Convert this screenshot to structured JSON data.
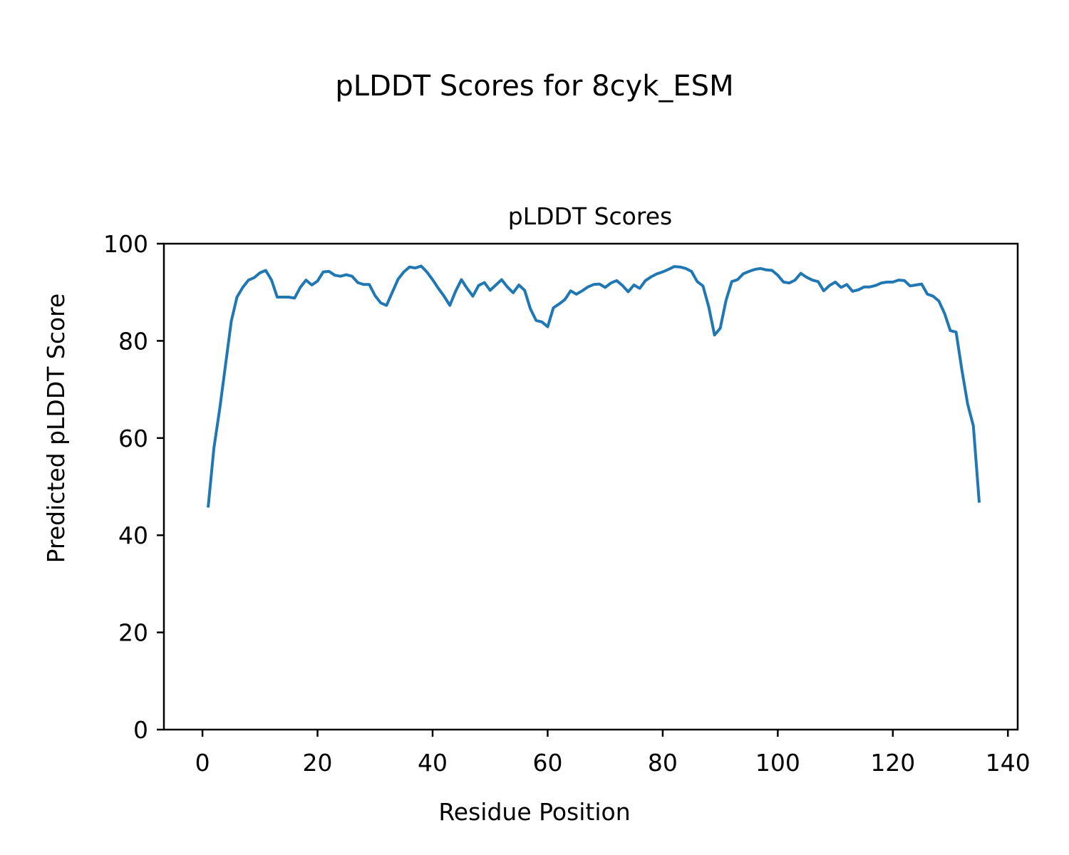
{
  "figure": {
    "suptitle": "pLDDT Scores for 8cyk_ESM"
  },
  "chart_data": {
    "type": "line",
    "title": "pLDDT Scores",
    "xlabel": "Residue Position",
    "ylabel": "Predicted pLDDT Score",
    "xlim": [
      -6.7,
      141.7
    ],
    "ylim": [
      0,
      100
    ],
    "xticks": [
      0,
      20,
      40,
      60,
      80,
      100,
      120,
      140
    ],
    "yticks": [
      0,
      20,
      40,
      60,
      80,
      100
    ],
    "grid": false,
    "legend": "none",
    "series": [
      {
        "color": "#1f77b4",
        "x": [
          1,
          2,
          3,
          4,
          5,
          6,
          7,
          8,
          9,
          10,
          11,
          12,
          13,
          14,
          15,
          16,
          17,
          18,
          19,
          20,
          21,
          22,
          23,
          24,
          25,
          26,
          27,
          28,
          29,
          30,
          31,
          32,
          33,
          34,
          35,
          36,
          37,
          38,
          39,
          40,
          41,
          42,
          43,
          44,
          45,
          46,
          47,
          48,
          49,
          50,
          51,
          52,
          53,
          54,
          55,
          56,
          57,
          58,
          59,
          60,
          61,
          62,
          63,
          64,
          65,
          66,
          67,
          68,
          69,
          70,
          71,
          72,
          73,
          74,
          75,
          76,
          77,
          78,
          79,
          80,
          81,
          82,
          83,
          84,
          85,
          86,
          87,
          88,
          89,
          90,
          91,
          92,
          93,
          94,
          95,
          96,
          97,
          98,
          99,
          100,
          101,
          102,
          103,
          104,
          105,
          106,
          107,
          108,
          109,
          110,
          111,
          112,
          113,
          114,
          115,
          116,
          117,
          118,
          119,
          120,
          121,
          122,
          123,
          124,
          125,
          126,
          127,
          128,
          129,
          130,
          131,
          132,
          133,
          134,
          135
        ],
        "y": [
          46,
          58,
          66,
          75,
          84,
          89,
          91,
          92.5,
          93,
          94,
          94.5,
          92.5,
          89,
          89,
          89,
          88.8,
          91,
          92.5,
          91.5,
          92.3,
          94.2,
          94.3,
          93.5,
          93.3,
          93.6,
          93.3,
          92,
          91.6,
          91.6,
          89.3,
          87.8,
          87.3,
          90,
          92.7,
          94.2,
          95.2,
          95,
          95.4,
          94.2,
          92.6,
          90.8,
          89.2,
          87.3,
          90.2,
          92.6,
          90.8,
          89.2,
          91.4,
          92,
          90.4,
          91.5,
          92.6,
          91.1,
          89.9,
          91.5,
          90.4,
          86.6,
          84.2,
          83.9,
          82.9,
          86.8,
          87.6,
          88.5,
          90.3,
          89.6,
          90.3,
          91.1,
          91.6,
          91.7,
          91,
          91.9,
          92.4,
          91.4,
          90.1,
          91.5,
          90.8,
          92.4,
          93.2,
          93.8,
          94.2,
          94.7,
          95.3,
          95.2,
          94.9,
          94.3,
          92.2,
          91.3,
          87,
          81.2,
          82.6,
          88.3,
          92.2,
          92.6,
          93.8,
          94.3,
          94.7,
          94.9,
          94.6,
          94.5,
          93.5,
          92.1,
          91.9,
          92.5,
          93.9,
          93.1,
          92.5,
          92.2,
          90.3,
          91.4,
          92.1,
          91,
          91.6,
          90.2,
          90.5,
          91.1,
          91.1,
          91.4,
          91.9,
          92.1,
          92.1,
          92.5,
          92.4,
          91.3,
          91.5,
          91.7,
          89.6,
          89.2,
          88.2,
          85.6,
          82.1,
          81.8,
          74,
          67,
          62.5,
          47
        ]
      }
    ]
  }
}
